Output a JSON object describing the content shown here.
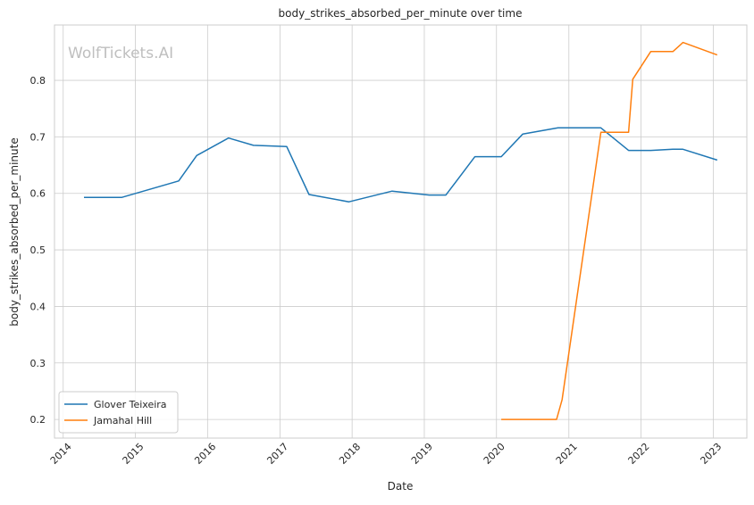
{
  "watermark": "WolfTickets.AI",
  "chart_data": {
    "type": "line",
    "title": "body_strikes_absorbed_per_minute over time",
    "xlabel": "Date",
    "ylabel": "body_strikes_absorbed_per_minute",
    "x_tick_labels": [
      "2014",
      "2015",
      "2016",
      "2017",
      "2018",
      "2019",
      "2020",
      "2021",
      "2022",
      "2023"
    ],
    "y_tick_labels": [
      "0.2",
      "0.3",
      "0.4",
      "0.5",
      "0.6",
      "0.7",
      "0.8"
    ],
    "y_ticks": [
      0.2,
      0.3,
      0.4,
      0.5,
      0.6,
      0.7,
      0.8
    ],
    "xlim": [
      "2013-11-18",
      "2023-06-20"
    ],
    "ylim": [
      0.167,
      0.898
    ],
    "grid": true,
    "legend_position": "lower-left",
    "series": [
      {
        "name": "Glover Teixeira",
        "color": "#1f77b4",
        "x": [
          "2014-04-16",
          "2014-10-25",
          "2015-08-08",
          "2015-11-07",
          "2016-04-16",
          "2016-08-20",
          "2017-02-04",
          "2017-05-28",
          "2017-12-16",
          "2018-07-22",
          "2019-01-26",
          "2019-04-20",
          "2019-09-14",
          "2020-01-25",
          "2020-05-13",
          "2020-11-07",
          "2021-06-12",
          "2021-10-30",
          "2022-02-19",
          "2022-06-11",
          "2022-08-01",
          "2023-01-21"
        ],
        "y": [
          0.593,
          0.593,
          0.622,
          0.667,
          0.698,
          0.685,
          0.683,
          0.598,
          0.585,
          0.604,
          0.597,
          0.597,
          0.665,
          0.665,
          0.705,
          0.716,
          0.716,
          0.676,
          0.676,
          0.678,
          0.678,
          0.659
        ]
      },
      {
        "name": "Jamahal Hill",
        "color": "#ff7f0e",
        "x": [
          "2020-01-25",
          "2020-10-31",
          "2020-11-28",
          "2021-06-12",
          "2021-10-30",
          "2021-11-20",
          "2022-02-19",
          "2022-06-11",
          "2022-08-01",
          "2023-01-21"
        ],
        "y": [
          0.2,
          0.2,
          0.235,
          0.708,
          0.708,
          0.802,
          0.851,
          0.851,
          0.867,
          0.845
        ]
      }
    ]
  }
}
